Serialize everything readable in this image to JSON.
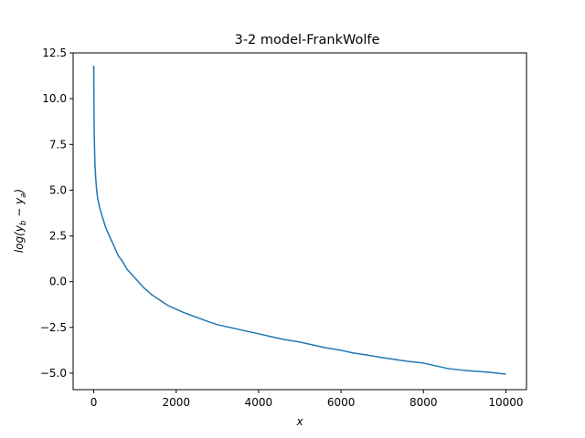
{
  "chart_data": {
    "type": "line",
    "title": "3-2 model-FrankWolfe",
    "xlabel": "x",
    "ylabel": "log(y_b − y_a)",
    "ylabel_parts": {
      "base": "log(y",
      "sub1": "b",
      "mid": " − y",
      "sub2": "a",
      "end": ")"
    },
    "xlim": [
      -500,
      10500
    ],
    "ylim": [
      -5.9,
      12.5
    ],
    "xticks": [
      0,
      2000,
      4000,
      6000,
      8000,
      10000
    ],
    "xtick_labels": [
      "0",
      "2000",
      "4000",
      "6000",
      "8000",
      "10000"
    ],
    "yticks": [
      -5.0,
      -2.5,
      0.0,
      2.5,
      5.0,
      7.5,
      10.0,
      12.5
    ],
    "ytick_labels": [
      "−5.0",
      "−2.5",
      "0.0",
      "2.5",
      "5.0",
      "7.5",
      "10.0",
      "12.5"
    ],
    "grid": false,
    "series": [
      {
        "color": "#1f77b4",
        "x": [
          0,
          5,
          10,
          20,
          30,
          50,
          75,
          100,
          150,
          200,
          300,
          400,
          500,
          600,
          700,
          800,
          1000,
          1200,
          1400,
          1600,
          1800,
          2000,
          2200,
          2500,
          2800,
          3000,
          3300,
          3600,
          4000,
          4300,
          4600,
          5000,
          5300,
          5600,
          6000,
          6300,
          6600,
          7000,
          7300,
          7600,
          8000,
          8300,
          8600,
          9000,
          9300,
          9600,
          10000
        ],
        "y": [
          11.8,
          10.0,
          8.4,
          7.2,
          6.4,
          5.6,
          4.9,
          4.5,
          4.0,
          3.6,
          2.9,
          2.4,
          1.9,
          1.4,
          1.1,
          0.7,
          0.2,
          -0.3,
          -0.7,
          -1.0,
          -1.3,
          -1.5,
          -1.7,
          -1.95,
          -2.2,
          -2.35,
          -2.5,
          -2.65,
          -2.85,
          -3.0,
          -3.15,
          -3.3,
          -3.45,
          -3.6,
          -3.75,
          -3.9,
          -4.0,
          -4.15,
          -4.25,
          -4.35,
          -4.45,
          -4.6,
          -4.75,
          -4.85,
          -4.9,
          -4.95,
          -5.05
        ]
      }
    ]
  }
}
